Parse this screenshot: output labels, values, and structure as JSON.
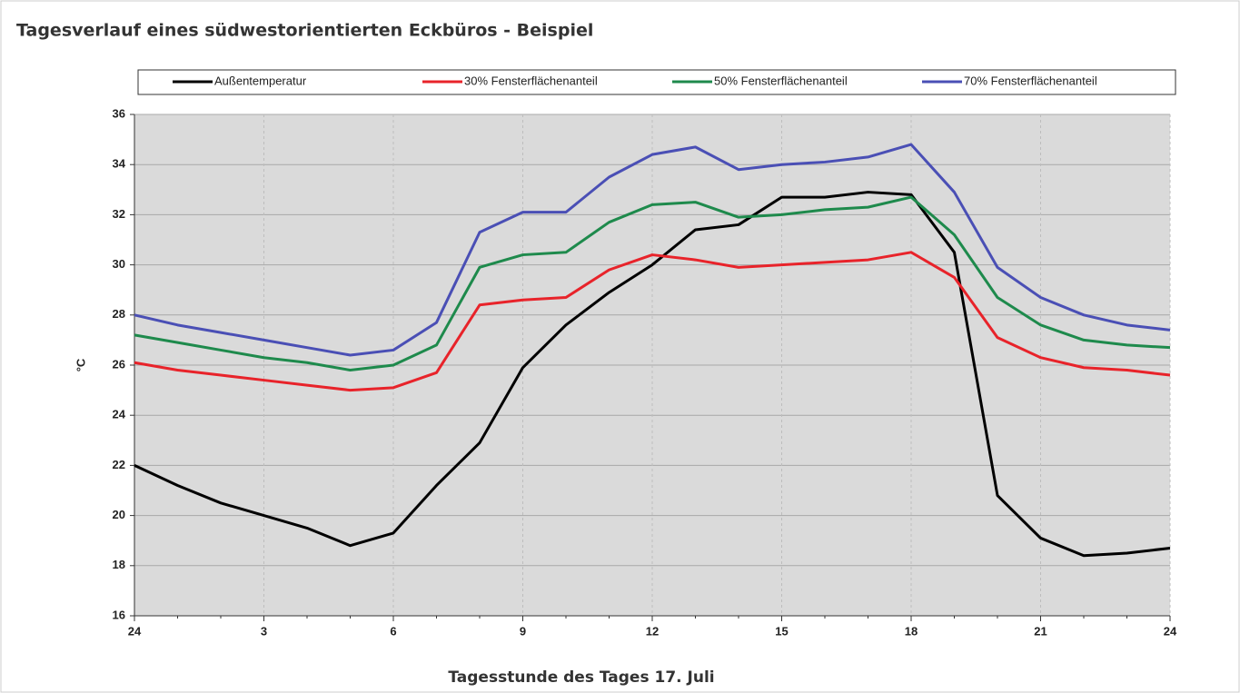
{
  "chart_data": {
    "type": "line",
    "title": "Tagesverlauf eines südwestorientierten Eckbüros - Beispiel",
    "y_label": "°C",
    "x_label": "Tagesstunde des Tages 17. Juli",
    "categories": [
      "24",
      null,
      null,
      "3",
      null,
      null,
      "6",
      null,
      null,
      "9",
      null,
      null,
      "12",
      null,
      null,
      "15",
      null,
      null,
      "18",
      null,
      null,
      "21",
      null,
      null,
      "24"
    ],
    "series": [
      {
        "name": "Außentemperatur",
        "color": "#000000",
        "values": [
          22.0,
          21.2,
          20.5,
          20.0,
          19.5,
          18.8,
          19.3,
          21.2,
          22.9,
          25.9,
          27.6,
          28.9,
          30.0,
          31.4,
          31.6,
          32.7,
          32.7,
          32.9,
          32.8,
          30.5,
          20.8,
          19.1,
          18.4,
          18.5,
          18.7
        ]
      },
      {
        "name": "30% Fensterflächenanteil",
        "color": "#e8232a",
        "values": [
          26.1,
          25.8,
          25.6,
          25.4,
          25.2,
          25.0,
          25.1,
          25.7,
          28.4,
          28.6,
          28.7,
          29.8,
          30.4,
          30.2,
          29.9,
          30.0,
          30.1,
          30.2,
          30.5,
          29.5,
          27.1,
          26.3,
          25.9,
          25.8,
          25.6
        ]
      },
      {
        "name": "50% Fensterflächenanteil",
        "color": "#1e8a4c",
        "values": [
          27.2,
          26.9,
          26.6,
          26.3,
          26.1,
          25.8,
          26.0,
          26.8,
          29.9,
          30.4,
          30.5,
          31.7,
          32.4,
          32.5,
          31.9,
          32.0,
          32.2,
          32.3,
          32.7,
          31.2,
          28.7,
          27.6,
          27.0,
          26.8,
          26.7
        ]
      },
      {
        "name": "70% Fensterflächenanteil",
        "color": "#4a4fb5",
        "values": [
          28.0,
          27.6,
          27.3,
          27.0,
          26.7,
          26.4,
          26.6,
          27.7,
          31.3,
          32.1,
          32.1,
          33.5,
          34.4,
          34.7,
          33.8,
          34.0,
          34.1,
          34.3,
          34.8,
          32.9,
          29.9,
          28.7,
          28.0,
          27.6,
          27.4
        ]
      }
    ],
    "ylim": [
      16,
      36
    ],
    "yticks": [
      16,
      18,
      20,
      22,
      24,
      26,
      28,
      30,
      32,
      34,
      36
    ],
    "grid": true,
    "legend": "top"
  }
}
